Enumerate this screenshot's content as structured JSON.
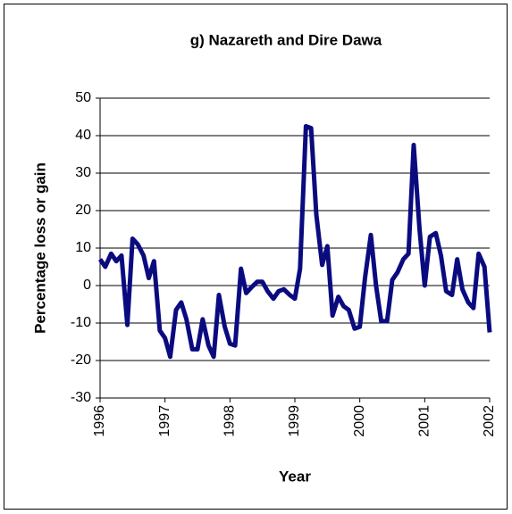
{
  "chart_data": {
    "type": "line",
    "title": "g) Nazareth and Dire Dawa",
    "xlabel": "Year",
    "ylabel": "Percentage loss or gain",
    "x": [
      1996.0,
      1996.08,
      1996.17,
      1996.25,
      1996.33,
      1996.42,
      1996.5,
      1996.58,
      1996.67,
      1996.75,
      1996.83,
      1996.92,
      1997.0,
      1997.08,
      1997.17,
      1997.25,
      1997.33,
      1997.42,
      1997.5,
      1997.58,
      1997.67,
      1997.75,
      1997.83,
      1997.92,
      1998.0,
      1998.08,
      1998.17,
      1998.25,
      1998.33,
      1998.42,
      1998.5,
      1998.58,
      1998.67,
      1998.75,
      1998.83,
      1998.92,
      1999.0,
      1999.08,
      1999.17,
      1999.25,
      1999.33,
      1999.42,
      1999.5,
      1999.58,
      1999.67,
      1999.75,
      1999.83,
      1999.92,
      2000.0,
      2000.08,
      2000.17,
      2000.25,
      2000.33,
      2000.42,
      2000.5,
      2000.58,
      2000.67,
      2000.75,
      2000.83,
      2000.92,
      2001.0,
      2001.08,
      2001.17,
      2001.25,
      2001.33,
      2001.42,
      2001.5,
      2001.58,
      2001.67,
      2001.75,
      2001.83,
      2001.92,
      2002.0
    ],
    "series": [
      {
        "color": "#0b0b80",
        "values": [
          7,
          5,
          8.5,
          6.5,
          8,
          -10.5,
          12.5,
          11,
          8,
          2,
          6.5,
          -12,
          -14,
          -19,
          -6.5,
          -4.5,
          -9,
          -17,
          -17,
          -9,
          -16,
          -19,
          -2.5,
          -11,
          -15.5,
          -16,
          4.5,
          -2,
          -0.5,
          1,
          1,
          -1.5,
          -3.5,
          -1.5,
          -1,
          -2.5,
          -3.5,
          4.5,
          42.5,
          42,
          19,
          5.5,
          10.5,
          -8,
          -3,
          -5.5,
          -6.5,
          -11.5,
          -11,
          2,
          13.5,
          0,
          -9.5,
          -9.5,
          1.5,
          3.5,
          7,
          8.5,
          37.5,
          15,
          0,
          13,
          14,
          8,
          -1.5,
          -2.5,
          7,
          -1,
          -4.5,
          -6,
          8.5,
          5,
          -12.5
        ]
      }
    ],
    "xlim": [
      1996,
      2002
    ],
    "xticks": [
      1996,
      1997,
      1998,
      1999,
      2000,
      2001,
      2002
    ],
    "ylim": [
      -30,
      50
    ],
    "yticks": [
      -30,
      -20,
      -10,
      0,
      10,
      20,
      30,
      40,
      50
    ],
    "grid": true
  }
}
